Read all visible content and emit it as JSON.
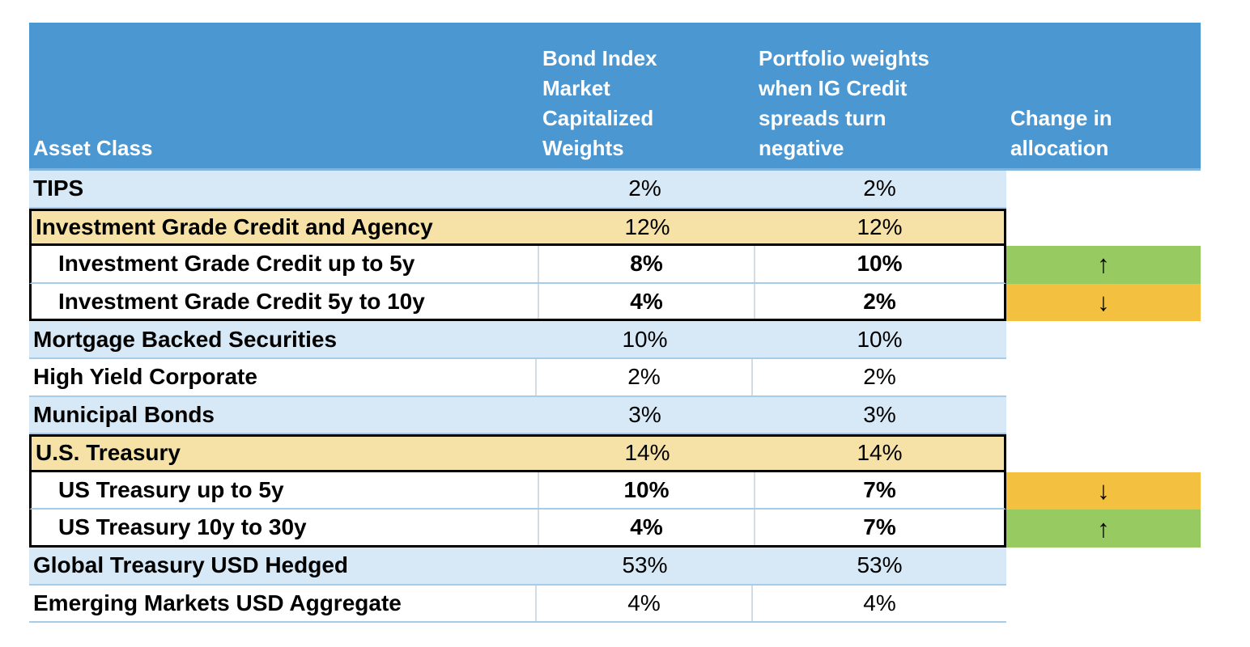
{
  "title": "Bond portfolio allocation table",
  "colors": {
    "header_background": "#4A97D2",
    "header_text": "#FFFFFF",
    "row_light_blue": "#D7E9F6",
    "row_tan": "#F6E2A7",
    "row_white": "#FFFFFF",
    "increase_green": "#97CA60",
    "decrease_orange": "#F3C13F",
    "row_divider_blue": "#A5CDEA",
    "header_underline_blue": "#7FB4DF",
    "block_border_black": "#000000"
  },
  "table": {
    "header": {
      "asset_class": "Asset Class",
      "bond_index_weights": "Bond Index\nMarket\nCapitalized\nWeights",
      "portfolio_weights": "Portfolio weights\nwhen IG Credit\nspreads turn\nnegative",
      "change_in_allocation": "Change in\nallocation"
    },
    "change_icons": {
      "up": "↑",
      "down": "↓"
    },
    "rows": [
      {
        "asset_class": "TIPS",
        "style": "blue",
        "bond_index_weight": "2%",
        "portfolio_weight": "2%",
        "change": null
      },
      {
        "asset_class": "Investment Grade Credit and Agency",
        "style": "tan",
        "bond_index_weight": "12%",
        "portfolio_weight": "12%",
        "change": null
      },
      {
        "asset_class": "Investment Grade Credit up to 5y",
        "style": "sub",
        "bond_index_weight": "8%",
        "portfolio_weight": "10%",
        "change": "up"
      },
      {
        "asset_class": "Investment Grade Credit 5y to 10y",
        "style": "sub",
        "bond_index_weight": "4%",
        "portfolio_weight": "2%",
        "change": "down"
      },
      {
        "asset_class": "Mortgage Backed Securities",
        "style": "blue",
        "bond_index_weight": "10%",
        "portfolio_weight": "10%",
        "change": null
      },
      {
        "asset_class": "High Yield Corporate",
        "style": "white",
        "bond_index_weight": "2%",
        "portfolio_weight": "2%",
        "change": null
      },
      {
        "asset_class": "Municipal Bonds",
        "style": "blue",
        "bond_index_weight": "3%",
        "portfolio_weight": "3%",
        "change": null
      },
      {
        "asset_class": "U.S. Treasury",
        "style": "tan",
        "bond_index_weight": "14%",
        "portfolio_weight": "14%",
        "change": null
      },
      {
        "asset_class": "US Treasury up to 5y",
        "style": "sub",
        "bond_index_weight": "10%",
        "portfolio_weight": "7%",
        "change": "down"
      },
      {
        "asset_class": "US Treasury 10y to 30y",
        "style": "sub",
        "bond_index_weight": "4%",
        "portfolio_weight": "7%",
        "change": "up"
      },
      {
        "asset_class": "Global Treasury USD Hedged",
        "style": "blue",
        "bond_index_weight": "53%",
        "portfolio_weight": "53%",
        "change": null
      },
      {
        "asset_class": "Emerging Markets USD Aggregate",
        "style": "white",
        "bond_index_weight": "4%",
        "portfolio_weight": "4%",
        "change": null
      }
    ]
  },
  "chart_data": {
    "type": "table",
    "columns": [
      "Asset Class",
      "Bond Index Market Capitalized Weights",
      "Portfolio weights when IG Credit spreads turn negative",
      "Change in allocation"
    ],
    "rows": [
      [
        "TIPS",
        "2%",
        "2%",
        ""
      ],
      [
        "Investment Grade Credit and Agency",
        "12%",
        "12%",
        ""
      ],
      [
        "Investment Grade Credit up to 5y",
        "8%",
        "10%",
        "up"
      ],
      [
        "Investment Grade Credit 5y to 10y",
        "4%",
        "2%",
        "down"
      ],
      [
        "Mortgage Backed Securities",
        "10%",
        "10%",
        ""
      ],
      [
        "High Yield Corporate",
        "2%",
        "2%",
        ""
      ],
      [
        "Municipal Bonds",
        "3%",
        "3%",
        ""
      ],
      [
        "U.S. Treasury",
        "14%",
        "14%",
        ""
      ],
      [
        "US Treasury up to 5y",
        "10%",
        "7%",
        "down"
      ],
      [
        "US Treasury 10y to 30y",
        "4%",
        "7%",
        "up"
      ],
      [
        "Global Treasury USD Hedged",
        "53%",
        "53%",
        ""
      ],
      [
        "Emerging Markets USD Aggregate",
        "4%",
        "4%",
        ""
      ]
    ]
  }
}
